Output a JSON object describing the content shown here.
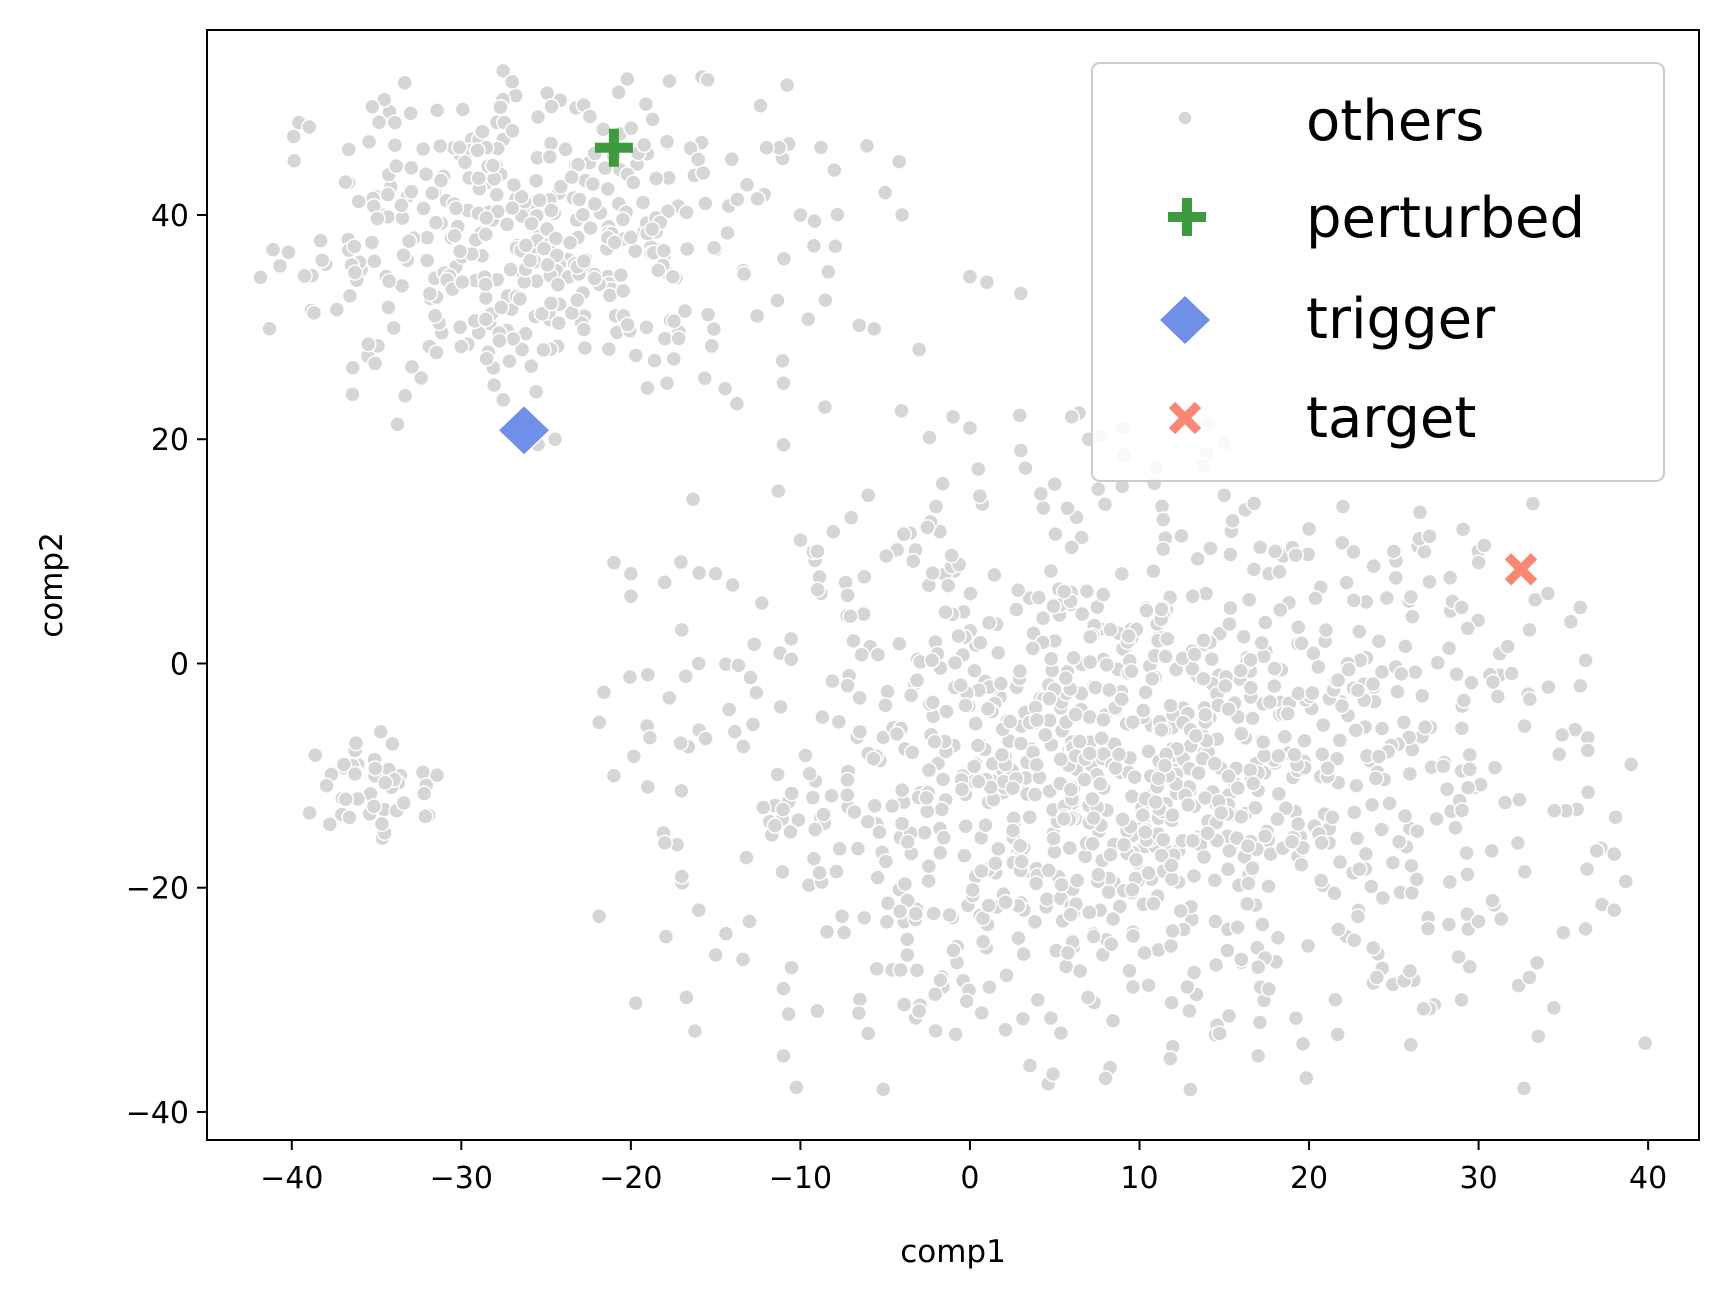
{
  "chart_data": {
    "type": "scatter",
    "title": "",
    "xlabel": "comp1",
    "ylabel": "comp2",
    "xlim": [
      -45,
      43
    ],
    "ylim": [
      -42.5,
      56.5
    ],
    "xticks": [
      -40,
      -30,
      -20,
      -10,
      0,
      10,
      20,
      30,
      40
    ],
    "xtick_labels": [
      "−40",
      "−30",
      "−20",
      "−10",
      "0",
      "10",
      "20",
      "30",
      "40"
    ],
    "yticks": [
      -40,
      -20,
      0,
      20,
      40
    ],
    "ytick_labels": [
      "−40",
      "−20",
      "0",
      "20",
      "40"
    ],
    "grid": false,
    "legend": {
      "position": "top-right",
      "entries": [
        "others",
        "perturbed",
        "trigger",
        "target"
      ]
    },
    "series": [
      {
        "name": "others",
        "marker": "circle",
        "color": "#d6d6d6",
        "clusters": [
          {
            "cx": -26,
            "cy": 38,
            "sx": 7.5,
            "sy": 7,
            "n": 430,
            "xmin": -42,
            "xmax": -4,
            "ymin": 19,
            "ymax": 53
          },
          {
            "cx": 10,
            "cy": -10,
            "sx": 12.5,
            "sy": 11.5,
            "n": 1150,
            "xmin": -23,
            "xmax": 40,
            "ymin": -38,
            "ymax": 23
          },
          {
            "cx": -35,
            "cy": -11,
            "sx": 2.2,
            "sy": 2.3,
            "n": 45,
            "xmin": -39,
            "xmax": -31,
            "ymin": -16,
            "ymax": -6
          }
        ],
        "points": [
          [
            -20,
            38
          ],
          [
            -12,
            46
          ],
          [
            -8,
            44
          ],
          [
            -4,
            40
          ],
          [
            -5,
            42
          ],
          [
            -10,
            40
          ],
          [
            0,
            34.5
          ],
          [
            1,
            34
          ],
          [
            3,
            33
          ],
          [
            -3,
            28
          ],
          [
            -11,
            25
          ],
          [
            -11,
            19.5
          ],
          [
            -1,
            22
          ],
          [
            0,
            21
          ],
          [
            3,
            19
          ],
          [
            5,
            16
          ],
          [
            -21,
            9
          ],
          [
            -20,
            8
          ],
          [
            -15,
            8
          ],
          [
            -14,
            7
          ],
          [
            -20,
            6
          ],
          [
            -17,
            3
          ],
          [
            -16,
            0
          ],
          [
            -19,
            -1
          ],
          [
            -21,
            -10
          ],
          [
            -19,
            -11
          ],
          [
            -18,
            -16
          ],
          [
            -17,
            -19
          ],
          [
            -16,
            -22
          ],
          [
            -15,
            -26
          ],
          [
            -13,
            -23
          ],
          [
            -11,
            -29
          ],
          [
            -11,
            -35
          ],
          [
            -9,
            -31
          ],
          [
            -6,
            -33
          ],
          [
            -3,
            -31
          ],
          [
            4,
            -30
          ],
          [
            8,
            -37
          ],
          [
            13,
            -38
          ],
          [
            17,
            -35
          ],
          [
            26,
            -34
          ],
          [
            24,
            -28
          ],
          [
            29,
            -30
          ],
          [
            30,
            -23
          ],
          [
            33,
            -28
          ],
          [
            35,
            -24
          ],
          [
            38,
            -22
          ],
          [
            38,
            -17
          ],
          [
            39,
            -9
          ],
          [
            36,
            -2
          ],
          [
            36,
            5
          ],
          [
            33,
            3
          ],
          [
            30,
            9
          ],
          [
            29,
            5
          ],
          [
            22,
            14
          ],
          [
            20,
            12
          ],
          [
            15,
            15
          ],
          [
            11,
            17.5
          ],
          [
            9,
            21
          ],
          [
            6,
            22
          ],
          [
            7,
            20
          ],
          [
            18,
            10
          ],
          [
            25,
            10
          ],
          [
            -2,
            14
          ],
          [
            -6,
            15
          ],
          [
            -7,
            13
          ],
          [
            -10,
            11
          ],
          [
            -9,
            10
          ]
        ]
      },
      {
        "name": "perturbed",
        "marker": "plus",
        "color": "#3d9b3d",
        "points": [
          [
            -21,
            46
          ]
        ]
      },
      {
        "name": "trigger",
        "marker": "diamond",
        "color": "#6f8fe8",
        "points": [
          [
            -26.3,
            20.8
          ]
        ]
      },
      {
        "name": "target",
        "marker": "x",
        "color": "#fa8774",
        "points": [
          [
            32.5,
            8.4
          ]
        ]
      }
    ]
  }
}
